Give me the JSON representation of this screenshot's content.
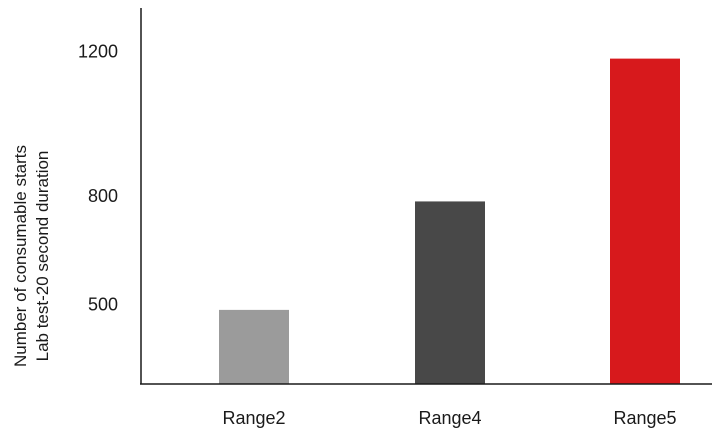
{
  "chart_data": {
    "type": "bar",
    "title": "",
    "xlabel": "",
    "ylabel": [
      "Number of consumable starts",
      "Lab test-20 second duration"
    ],
    "categories": [
      "Range2",
      "Range4",
      "Range5"
    ],
    "values": [
      485,
      785,
      1180
    ],
    "colors": [
      "#9b9b9b",
      "#484848",
      "#d7191c"
    ],
    "yticks": [
      {
        "value": 500,
        "label": "500"
      },
      {
        "value": 800,
        "label": "800"
      },
      {
        "value": 1200,
        "label": "1200"
      }
    ],
    "ylim": [
      280,
      1320
    ],
    "grid": false,
    "legend": "none"
  }
}
